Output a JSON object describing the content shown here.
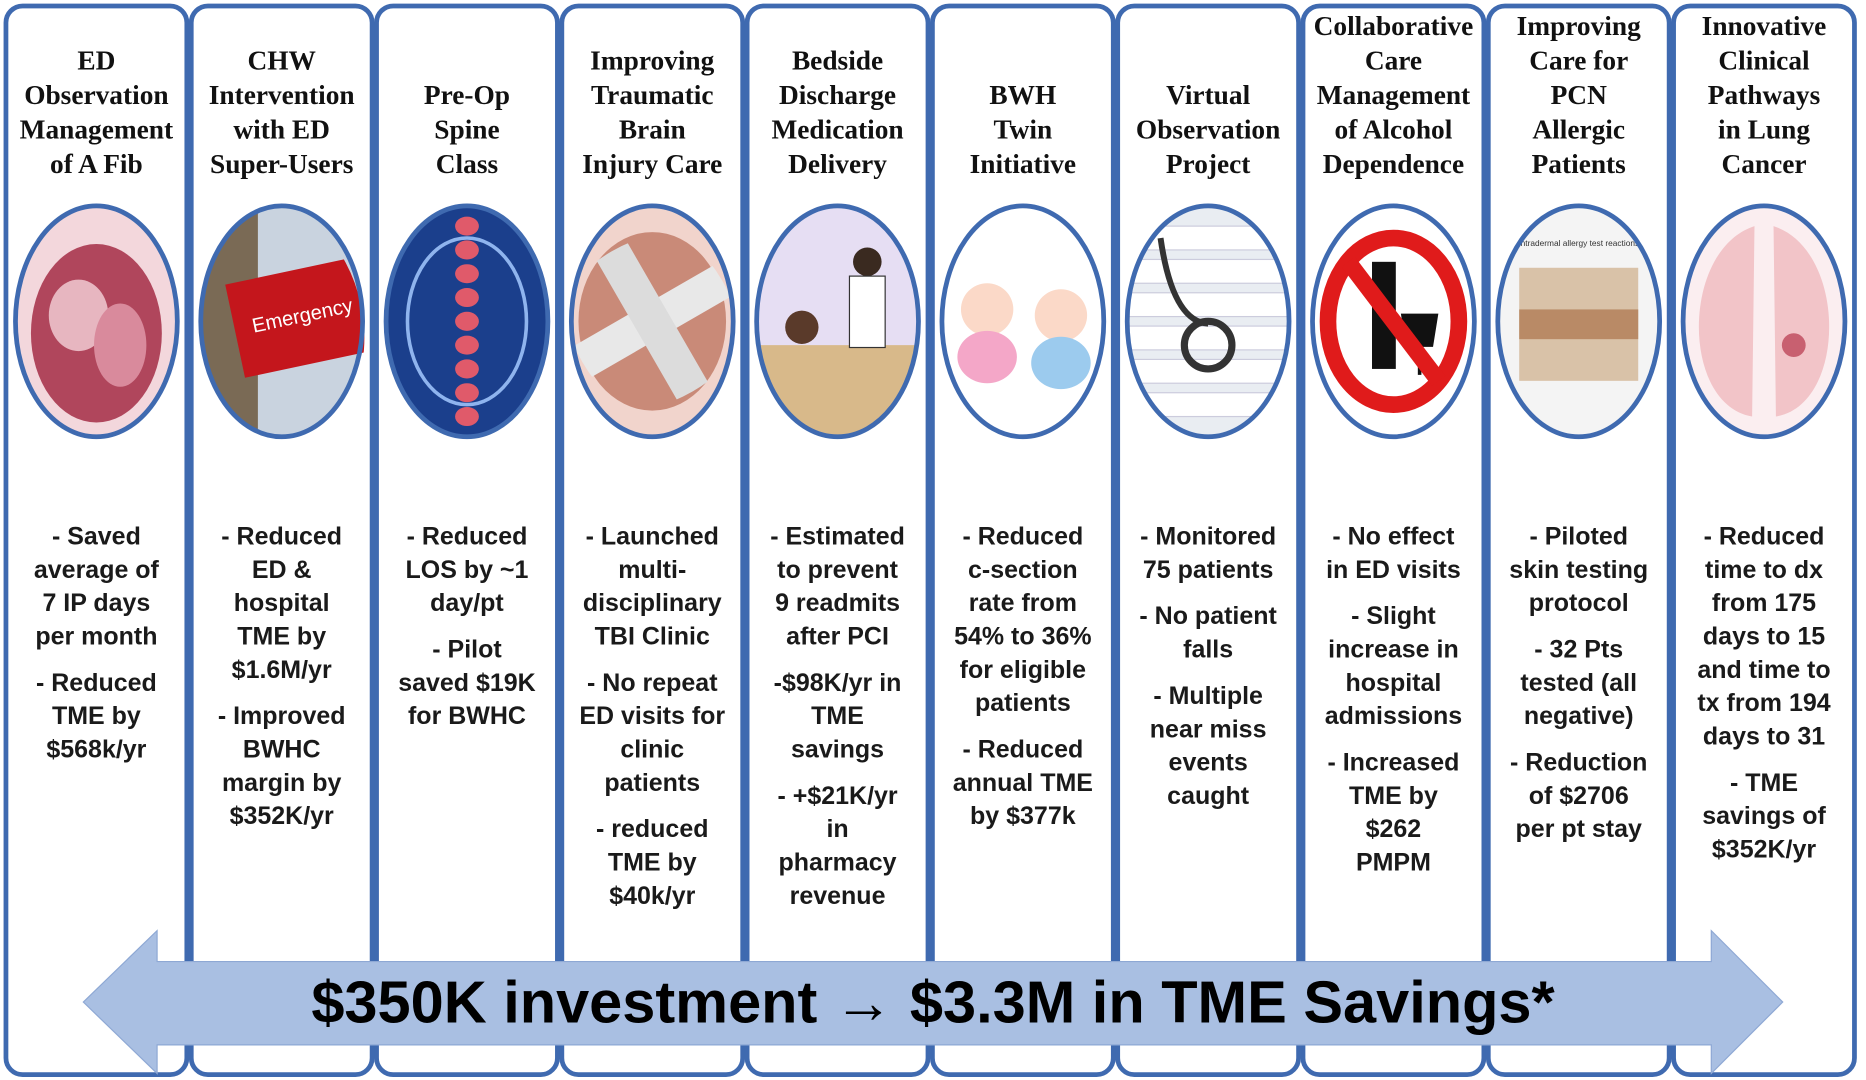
{
  "columns": [
    {
      "title": [
        "ED",
        "Observation",
        "Management",
        "of A Fib"
      ],
      "bullets": [
        [
          "- Saved",
          "average of",
          "7 IP days",
          "per month"
        ],
        [
          "- Reduced",
          "TME by",
          "$568k/yr"
        ]
      ]
    },
    {
      "title": [
        "CHW",
        "Intervention",
        "with ED",
        "Super-Users"
      ],
      "image_text": "Emergency",
      "bullets": [
        [
          "- Reduced",
          "ED &",
          "hospital",
          "TME by",
          "$1.6M/yr"
        ],
        [
          "-  Improved",
          "BWHC",
          "margin by",
          "$352K/yr"
        ]
      ]
    },
    {
      "title": [
        "Pre-Op",
        "Spine",
        "Class"
      ],
      "bullets": [
        [
          "- Reduced",
          "LOS by ~1",
          "day/pt"
        ],
        [
          "- Pilot",
          "saved $19K",
          "for BWHC"
        ]
      ]
    },
    {
      "title": [
        "Improving",
        "Traumatic",
        "Brain",
        "Injury Care"
      ],
      "bullets": [
        [
          "- Launched",
          "multi-",
          "disciplinary",
          "TBI Clinic"
        ],
        [
          "- No repeat",
          "ED visits for",
          "clinic",
          "patients"
        ],
        [
          "- reduced",
          "TME by",
          "$40k/yr"
        ]
      ]
    },
    {
      "title": [
        "Bedside",
        "Discharge",
        "Medication",
        "Delivery"
      ],
      "bullets": [
        [
          "- Estimated",
          "to prevent",
          "9 readmits",
          "after PCI"
        ],
        [
          "-$98K/yr in",
          "TME",
          "savings"
        ],
        [
          "- +$21K/yr",
          "in",
          "pharmacy",
          "revenue"
        ]
      ]
    },
    {
      "title": [
        "BWH",
        "Twin",
        "Initiative"
      ],
      "bullets": [
        [
          "- Reduced",
          "c-section",
          "rate from",
          "54% to 36%",
          "for eligible",
          "patients"
        ],
        [
          "- Reduced",
          "annual TME",
          "by $377k"
        ]
      ]
    },
    {
      "title": [
        "Virtual",
        "Observation",
        "Project"
      ],
      "bullets": [
        [
          "- Monitored",
          "75 patients"
        ],
        [
          "- No patient",
          "falls"
        ],
        [
          "- Multiple",
          "near miss",
          "events",
          "caught"
        ]
      ]
    },
    {
      "title": [
        "Collaborative",
        "Care",
        "Management",
        "of Alcohol",
        "Dependence"
      ],
      "bullets": [
        [
          "- No effect",
          "in ED visits"
        ],
        [
          "- Slight",
          "increase in",
          "hospital",
          "admissions"
        ],
        [
          "- Increased",
          "TME by",
          "$262",
          "PMPM"
        ]
      ]
    },
    {
      "title": [
        "Improving",
        "Care for",
        "PCN",
        "Allergic",
        "Patients"
      ],
      "image_text": "Intradermal allergy test reactions",
      "bullets": [
        [
          "- Piloted",
          "skin testing",
          "protocol"
        ],
        [
          "- 32 Pts",
          "tested (all",
          "negative)"
        ],
        [
          "- Reduction",
          "of $2706",
          "per pt stay"
        ]
      ]
    },
    {
      "title": [
        "Innovative",
        "Clinical",
        "Pathways",
        "in Lung",
        "Cancer"
      ],
      "bullets": [
        [
          "- Reduced",
          "time to dx",
          "from 175",
          "days to 15",
          "and time to",
          "tx from 194",
          "days to 31"
        ],
        [
          "- TME",
          "savings of",
          "$352K/yr"
        ]
      ]
    }
  ],
  "banner": "$350K investment → $3.3M in TME Savings*"
}
